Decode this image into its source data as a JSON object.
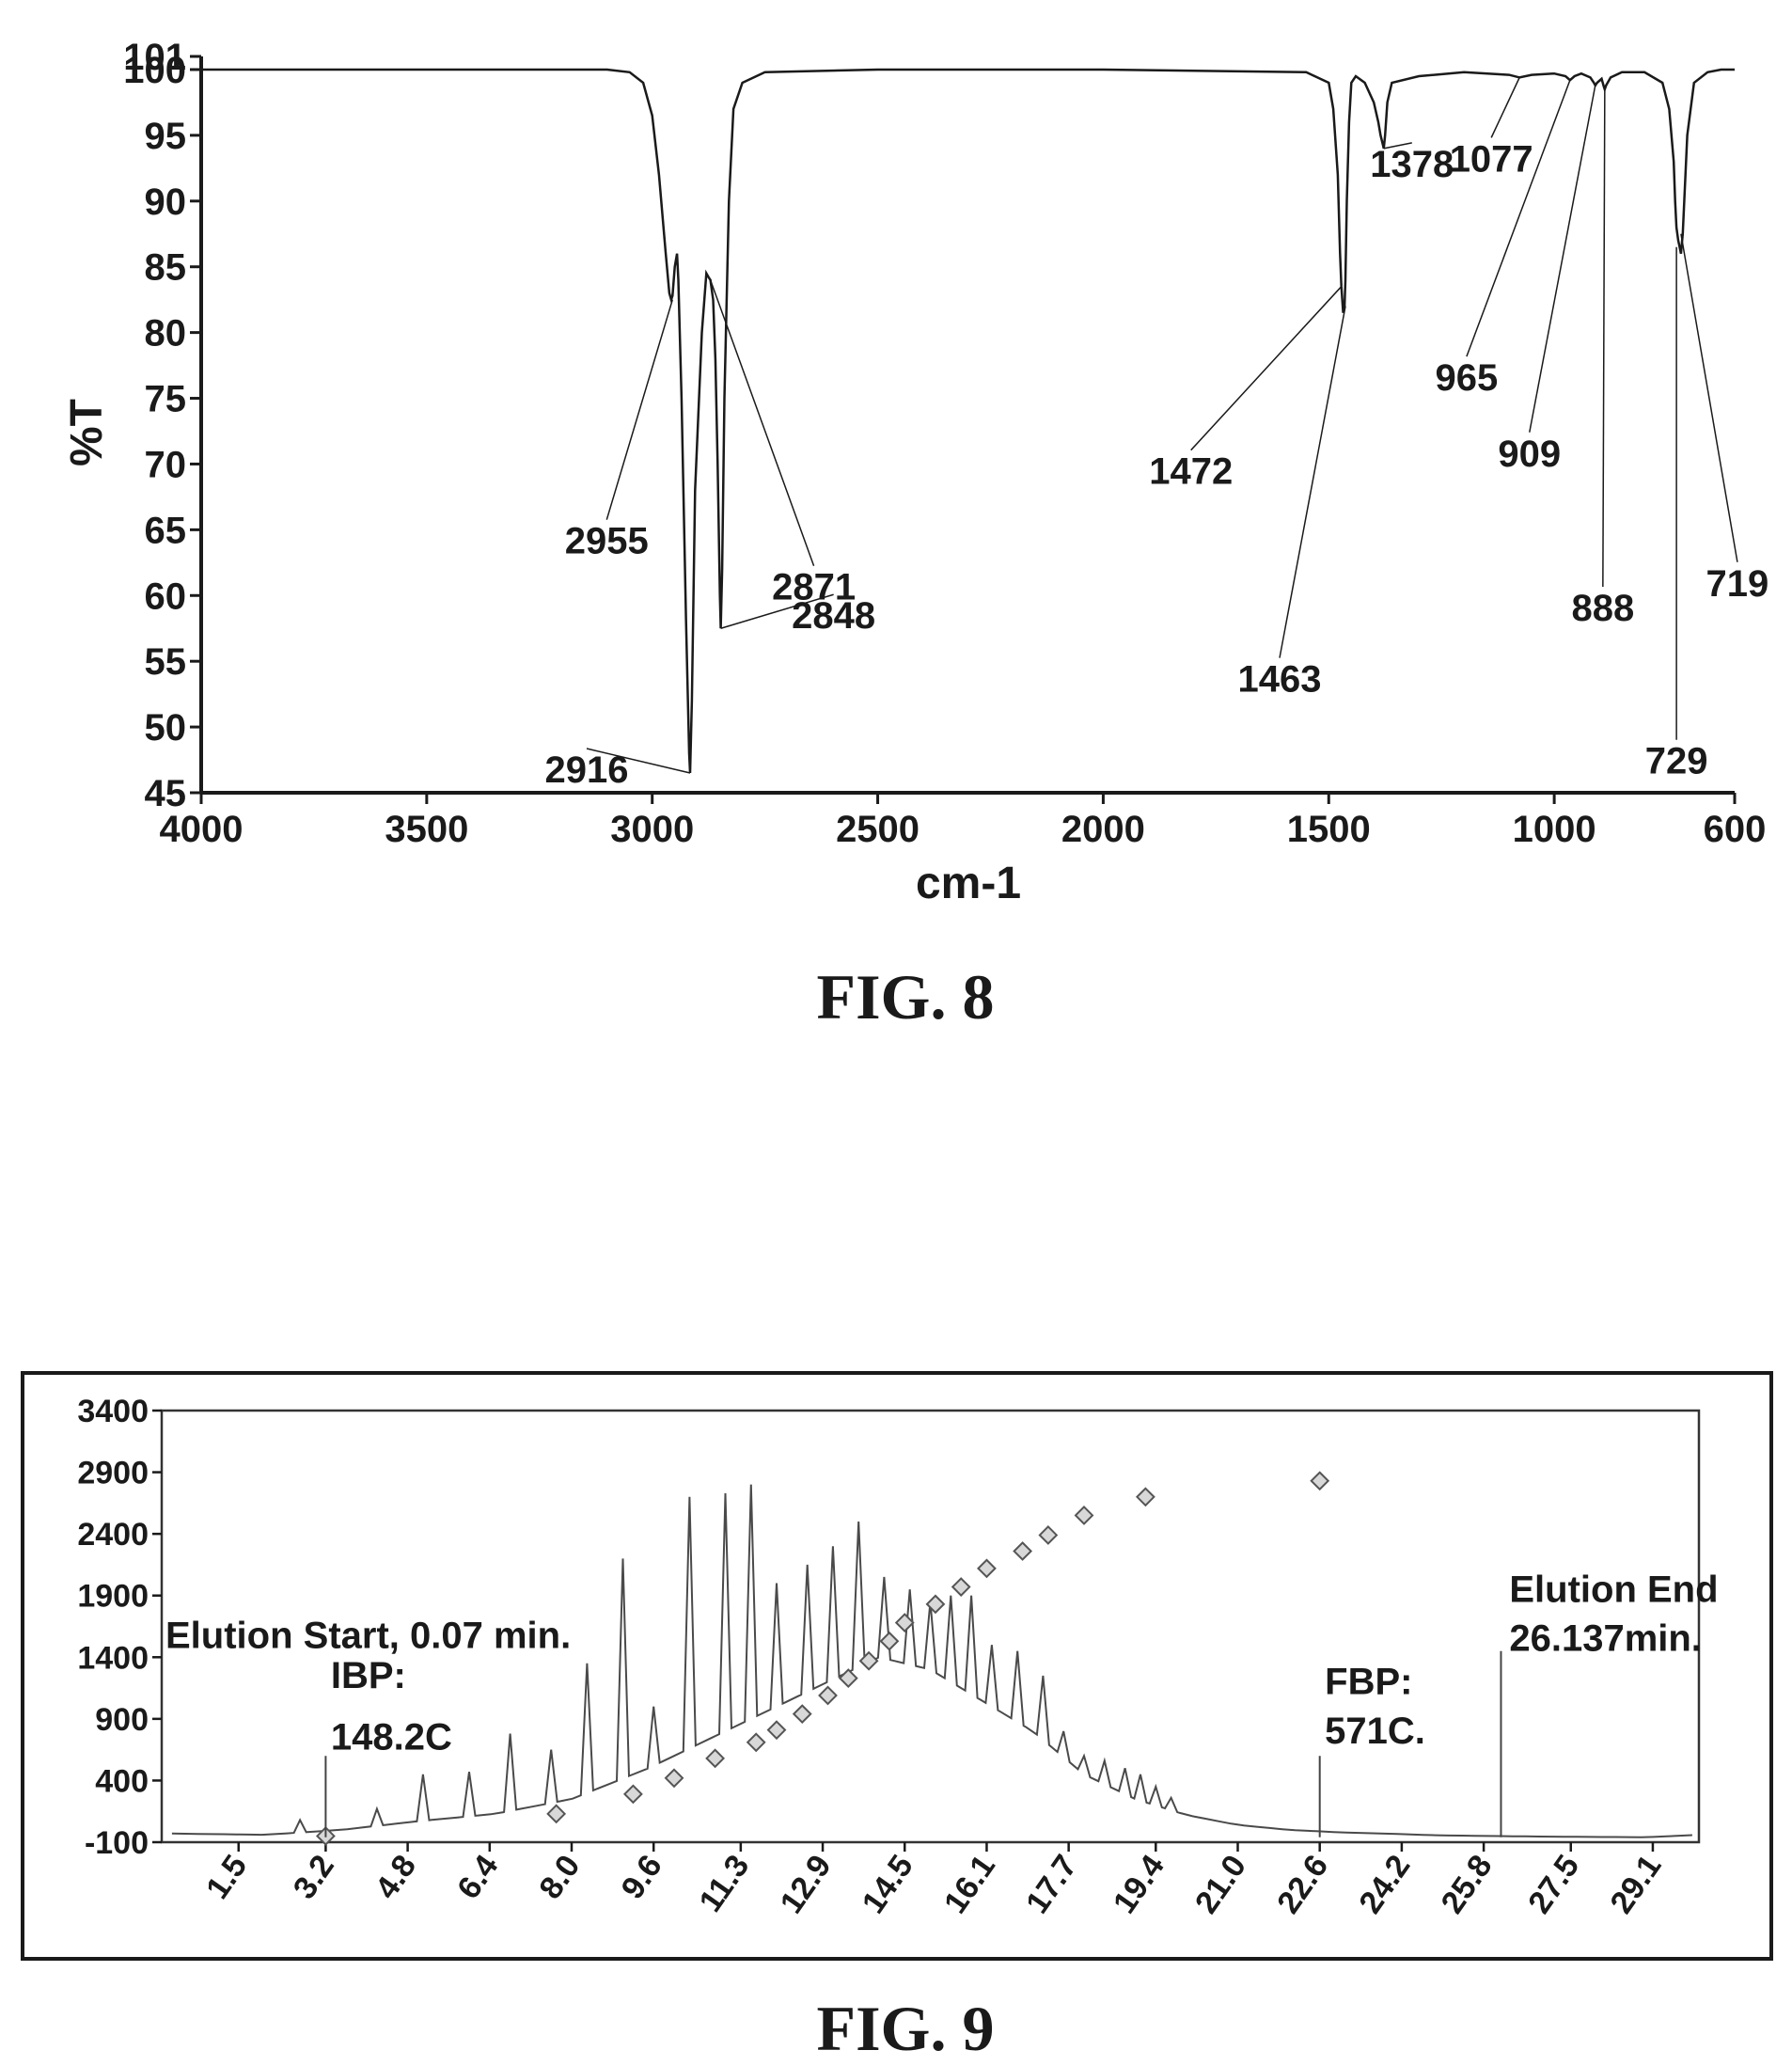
{
  "figures": [
    {
      "caption": "FIG. 8",
      "chart_data": {
        "type": "line",
        "xlabel": "cm-1",
        "ylabel": "%T",
        "xlim": [
          4000,
          600
        ],
        "ylim": [
          45,
          101
        ],
        "x_ticks": [
          "4000",
          "3500",
          "3000",
          "2500",
          "2000",
          "1500",
          "1000",
          "600"
        ],
        "x_tick_values": [
          4000,
          3500,
          3000,
          2500,
          2000,
          1500,
          1000,
          600
        ],
        "y_ticks": [
          "101",
          "100",
          "95",
          "90",
          "85",
          "80",
          "75",
          "70",
          "65",
          "60",
          "55",
          "50",
          "45"
        ],
        "y_tick_values": [
          101,
          100,
          95,
          90,
          85,
          80,
          75,
          70,
          65,
          60,
          55,
          50,
          45
        ],
        "series": [
          {
            "x": [
              4000,
              3100,
              3050,
              3020,
              3000,
              2985,
              2970,
              2962,
              2958,
              2955,
              2950,
              2945,
              2942,
              2935,
              2925,
              2918,
              2916,
              2912,
              2905,
              2890,
              2880,
              2875,
              2871,
              2865,
              2860,
              2855,
              2850,
              2848,
              2845,
              2840,
              2830,
              2820,
              2800,
              2750,
              2500,
              2000,
              1550,
              1500,
              1490,
              1480,
              1475,
              1472,
              1468,
              1465,
              1463,
              1460,
              1455,
              1450,
              1440,
              1420,
              1400,
              1390,
              1385,
              1380,
              1378,
              1375,
              1370,
              1360,
              1300,
              1200,
              1100,
              1077,
              1050,
              1000,
              975,
              965,
              955,
              940,
              920,
              912,
              909,
              905,
              895,
              890,
              888,
              885,
              875,
              850,
              800,
              760,
              745,
              735,
              732,
              729,
              725,
              722,
              719,
              715,
              705,
              690,
              660,
              630,
              600
            ],
            "y": [
              100.0,
              100.0,
              99.8,
              99.0,
              96.5,
              92.0,
              86.0,
              83.0,
              82.5,
              82.8,
              85.0,
              86.0,
              84.0,
              75.0,
              58.0,
              48.0,
              46.5,
              52.0,
              68.0,
              80.0,
              84.5,
              84.2,
              84.0,
              82.5,
              78.0,
              70.0,
              60.0,
              57.5,
              62.0,
              75.0,
              90.0,
              97.0,
              99.0,
              99.8,
              100.0,
              100.0,
              99.8,
              99.0,
              97.0,
              92.0,
              86.0,
              83.5,
              81.5,
              82.0,
              84.0,
              90.0,
              96.0,
              99.0,
              99.5,
              99.0,
              97.5,
              96.0,
              95.0,
              94.3,
              94.0,
              95.0,
              97.5,
              99.0,
              99.5,
              99.8,
              99.6,
              99.4,
              99.6,
              99.7,
              99.5,
              99.2,
              99.5,
              99.7,
              99.4,
              99.0,
              98.8,
              99.0,
              99.3,
              98.7,
              98.5,
              98.8,
              99.4,
              99.8,
              99.8,
              99.0,
              97.0,
              93.0,
              90.0,
              88.0,
              87.0,
              86.5,
              86.0,
              87.5,
              95.0,
              99.0,
              99.8,
              100.0,
              100.0
            ]
          }
        ],
        "annotations": [
          {
            "label": "2955",
            "x": 2955,
            "y": 82.5
          },
          {
            "label": "2871",
            "x": 2871,
            "y": 84.0
          },
          {
            "label": "2848",
            "x": 2848,
            "y": 57.5
          },
          {
            "label": "2916",
            "x": 2916,
            "y": 46.5
          },
          {
            "label": "1472",
            "x": 1472,
            "y": 83.5
          },
          {
            "label": "1463",
            "x": 1463,
            "y": 82.0
          },
          {
            "label": "1378",
            "x": 1378,
            "y": 94.0
          },
          {
            "label": "1077",
            "x": 1077,
            "y": 99.4
          },
          {
            "label": "965",
            "x": 965,
            "y": 99.2
          },
          {
            "label": "909",
            "x": 909,
            "y": 98.8
          },
          {
            "label": "888",
            "x": 888,
            "y": 98.5
          },
          {
            "label": "729",
            "x": 729,
            "y": 86.5
          },
          {
            "label": "719",
            "x": 719,
            "y": 87.5
          }
        ]
      }
    },
    {
      "caption": "FIG. 9",
      "chart_data": {
        "type": "line",
        "xlabel": "",
        "ylabel": "",
        "xlim": [
          0,
          30
        ],
        "ylim": [
          -100,
          3400
        ],
        "x_ticks": [
          "1.5",
          "3.2",
          "4.8",
          "6.4",
          "8.0",
          "9.6",
          "11.3",
          "12.9",
          "14.5",
          "16.1",
          "17.7",
          "19.4",
          "21.0",
          "22.6",
          "24.2",
          "25.8",
          "27.5",
          "29.1"
        ],
        "x_tick_values": [
          1.5,
          3.2,
          4.8,
          6.4,
          8.0,
          9.6,
          11.3,
          12.9,
          14.5,
          16.1,
          17.7,
          19.4,
          21.0,
          22.6,
          24.2,
          25.8,
          27.5,
          29.1
        ],
        "y_ticks": [
          "3400",
          "2900",
          "2400",
          "1900",
          "1400",
          "900",
          "400",
          "-100"
        ],
        "y_tick_values": [
          3400,
          2900,
          2400,
          1900,
          1400,
          900,
          400,
          -100
        ],
        "series": [
          {
            "peaks": [
              {
                "x": 2.7,
                "y": 80
              },
              {
                "x": 4.2,
                "y": 170
              },
              {
                "x": 5.1,
                "y": 450
              },
              {
                "x": 6.0,
                "y": 470
              },
              {
                "x": 6.8,
                "y": 780
              },
              {
                "x": 7.6,
                "y": 650
              },
              {
                "x": 8.3,
                "y": 1350
              },
              {
                "x": 9.0,
                "y": 2200
              },
              {
                "x": 9.6,
                "y": 1000
              },
              {
                "x": 10.3,
                "y": 2700
              },
              {
                "x": 11.0,
                "y": 2730
              },
              {
                "x": 11.5,
                "y": 2800
              },
              {
                "x": 12.0,
                "y": 2000
              },
              {
                "x": 12.6,
                "y": 2150
              },
              {
                "x": 13.1,
                "y": 2300
              },
              {
                "x": 13.6,
                "y": 2500
              },
              {
                "x": 14.1,
                "y": 2050
              },
              {
                "x": 14.6,
                "y": 1950
              },
              {
                "x": 15.0,
                "y": 1850
              },
              {
                "x": 15.4,
                "y": 1900
              },
              {
                "x": 15.8,
                "y": 1900
              },
              {
                "x": 16.2,
                "y": 1500
              },
              {
                "x": 16.7,
                "y": 1450
              },
              {
                "x": 17.2,
                "y": 1250
              },
              {
                "x": 17.6,
                "y": 800
              },
              {
                "x": 18.0,
                "y": 600
              },
              {
                "x": 18.4,
                "y": 560
              },
              {
                "x": 18.8,
                "y": 500
              },
              {
                "x": 19.1,
                "y": 450
              },
              {
                "x": 19.4,
                "y": 350
              },
              {
                "x": 19.7,
                "y": 260
              }
            ],
            "baseline": [
              {
                "x": 0.2,
                "y": -30
              },
              {
                "x": 2.0,
                "y": -40
              },
              {
                "x": 3.5,
                "y": 0
              },
              {
                "x": 5.0,
                "y": 70
              },
              {
                "x": 6.5,
                "y": 130
              },
              {
                "x": 8.0,
                "y": 250
              },
              {
                "x": 9.5,
                "y": 500
              },
              {
                "x": 11.0,
                "y": 800
              },
              {
                "x": 12.5,
                "y": 1100
              },
              {
                "x": 14.0,
                "y": 1400
              },
              {
                "x": 15.0,
                "y": 1300
              },
              {
                "x": 16.0,
                "y": 1050
              },
              {
                "x": 17.0,
                "y": 800
              },
              {
                "x": 18.0,
                "y": 450
              },
              {
                "x": 19.0,
                "y": 250
              },
              {
                "x": 20.0,
                "y": 120
              },
              {
                "x": 21.0,
                "y": 40
              },
              {
                "x": 22.0,
                "y": 0
              },
              {
                "x": 23.0,
                "y": -20
              },
              {
                "x": 25.0,
                "y": -45
              },
              {
                "x": 27.0,
                "y": -55
              },
              {
                "x": 29.0,
                "y": -60
              },
              {
                "x": 30.0,
                "y": -40
              }
            ]
          },
          {
            "points": [
              {
                "x": 3.2,
                "y": -50
              },
              {
                "x": 7.7,
                "y": 130
              },
              {
                "x": 9.2,
                "y": 290
              },
              {
                "x": 10.0,
                "y": 420
              },
              {
                "x": 10.8,
                "y": 580
              },
              {
                "x": 11.6,
                "y": 710
              },
              {
                "x": 12.0,
                "y": 810
              },
              {
                "x": 12.5,
                "y": 940
              },
              {
                "x": 13.0,
                "y": 1090
              },
              {
                "x": 13.4,
                "y": 1230
              },
              {
                "x": 13.8,
                "y": 1370
              },
              {
                "x": 14.2,
                "y": 1530
              },
              {
                "x": 14.5,
                "y": 1680
              },
              {
                "x": 15.1,
                "y": 1830
              },
              {
                "x": 15.6,
                "y": 1970
              },
              {
                "x": 16.1,
                "y": 2120
              },
              {
                "x": 16.8,
                "y": 2260
              },
              {
                "x": 17.3,
                "y": 2390
              },
              {
                "x": 18.0,
                "y": 2550
              },
              {
                "x": 19.2,
                "y": 2700
              },
              {
                "x": 22.6,
                "y": 2830
              }
            ]
          }
        ],
        "annotations": [
          {
            "label": "Elution Start, 0.07 min.",
            "x": 3.2,
            "y": 1400
          },
          {
            "label": "IBP:",
            "x": 3.2,
            "y": 1100
          },
          {
            "label": "148.2C",
            "x": 3.2,
            "y": 600
          },
          {
            "label": "FBP:",
            "x": 22.6,
            "y": 1100
          },
          {
            "label": "571C.",
            "x": 22.6,
            "y": 700
          },
          {
            "label": "Elution End",
            "x": 26.137,
            "y": 1850
          },
          {
            "label": "26.137min.",
            "x": 26.137,
            "y": 1450
          }
        ]
      }
    }
  ]
}
